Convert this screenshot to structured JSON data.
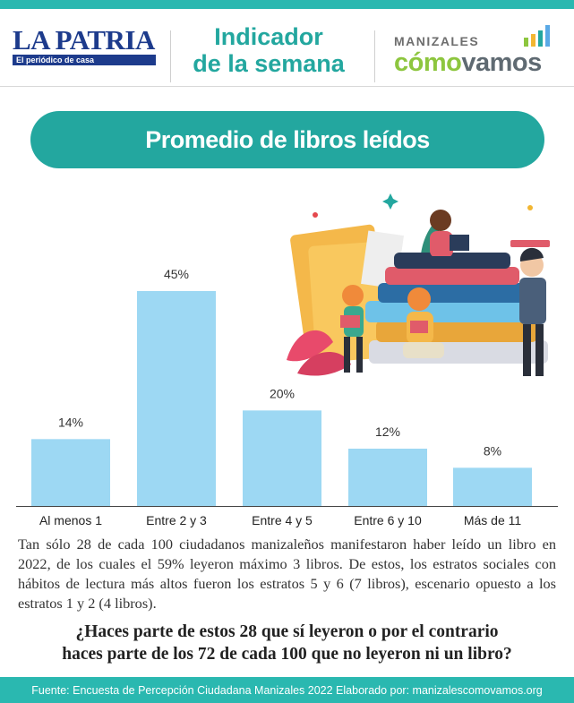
{
  "header": {
    "logo_name": "LA PATRIA",
    "logo_tagline": "El periódico de casa",
    "indicator_line1": "Indicador",
    "indicator_line2": "de la semana",
    "partner_line1": "MANIZALES",
    "partner_como": "cómo",
    "partner_vamos": "vamos"
  },
  "title": "Promedio de libros leídos",
  "chart_data": {
    "type": "bar",
    "categories": [
      "Al menos 1",
      "Entre 2 y 3",
      "Entre 4 y 5",
      "Entre 6 y 10",
      "Más de 11"
    ],
    "values": [
      14,
      45,
      20,
      12,
      8
    ],
    "value_labels": [
      "14%",
      "45%",
      "20%",
      "12%",
      "8%"
    ],
    "bar_color": "#9dd8f3",
    "ylim": [
      0,
      45
    ],
    "grid": false,
    "legend": "none"
  },
  "body": {
    "paragraph": "Tan sólo 28 de cada 100 ciudadanos manizaleños manifestaron haber leído un libro en 2022, de los cuales el 59% leyeron máximo 3 libros. De estos, los estratos sociales con hábitos de lectura más altos fueron los estratos 5 y 6 (7 libros), escenario opuesto a los estratos 1 y 2 (4 libros).",
    "question_line1": "¿Haces parte de estos 28 que sí leyeron o por el contrario",
    "question_line2": "haces parte de los 72 de cada 100 que no leyeron ni un libro?"
  },
  "footer": {
    "source": "Fuente: Encuesta de Percepción Ciudadana Manizales 2022 Elaborado por: manizalescomovamos.org"
  },
  "colors": {
    "teal": "#23a79f",
    "navy": "#1d3b8c",
    "green": "#8dc63f"
  }
}
